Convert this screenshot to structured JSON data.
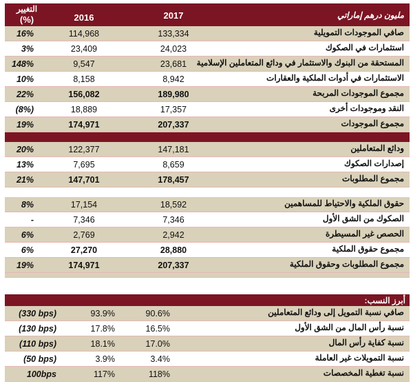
{
  "header": {
    "unit_label": "مليون درهم إماراتي",
    "col_2017": "2017",
    "col_2016": "2016",
    "col_change_line1": "التغيير",
    "col_change_line2": "(%)"
  },
  "colors": {
    "header_bg": "#7b1523",
    "band_bg": "#d9d1b9",
    "row_border": "#e7b7b5"
  },
  "assets": [
    {
      "label": "صافي الموجودات التمويلية",
      "y2017": "133,334",
      "y2016": "114,968",
      "change": "16%",
      "bold": false
    },
    {
      "label": "استثمارات في الصكوك",
      "y2017": "24,023",
      "y2016": "23,409",
      "change": "3%",
      "bold": false
    },
    {
      "label": "المستحقة من البنوك والاستثمار في ودائع المتعاملين الإسلامية",
      "y2017": "23,681",
      "y2016": "9,547",
      "change": "148%",
      "bold": false
    },
    {
      "label": "الاستثمارات في أدوات الملكية والعقارات",
      "y2017": "8,942",
      "y2016": "8,158",
      "change": "10%",
      "bold": false
    },
    {
      "label": "مجموع الموجودات المربحة",
      "y2017": "189,980",
      "y2016": "156,082",
      "change": "22%",
      "bold": true
    },
    {
      "label": "النقد وموجودات أخرى",
      "y2017": "17,357",
      "y2016": "18,889",
      "change": "(8%)",
      "bold": false
    },
    {
      "label": "مجموع الموجودات",
      "y2017": "207,337",
      "y2016": "174,971",
      "change": "19%",
      "bold": true
    }
  ],
  "liabilities": [
    {
      "label": "ودائع المتعاملين",
      "y2017": "147,181",
      "y2016": "122,377",
      "change": "20%",
      "bold": false
    },
    {
      "label": "إصدارات الصكوك",
      "y2017": "8,659",
      "y2016": "7,695",
      "change": "13%",
      "bold": false
    },
    {
      "label": "مجموع المطلوبات",
      "y2017": "178,457",
      "y2016": "147,701",
      "change": "21%",
      "bold": true
    }
  ],
  "equity": [
    {
      "label": "حقوق الملكية والاحتياط للمساهمين",
      "y2017": "18,592",
      "y2016": "17,154",
      "change": "8%",
      "bold": false
    },
    {
      "label": "الصكوك من الشق الأول",
      "y2017": "7,346",
      "y2016": "7,346",
      "change": "-",
      "bold": false
    },
    {
      "label": "الحصص غير المسيطرة",
      "y2017": "2,942",
      "y2016": "2,769",
      "change": "6%",
      "bold": false
    },
    {
      "label": "مجموع حقوق الملكية",
      "y2017": "28,880",
      "y2016": "27,270",
      "change": "6%",
      "bold": true
    },
    {
      "label": "مجموع المطلوبات وحقوق الملكية",
      "y2017": "207,337",
      "y2016": "174,971",
      "change": "19%",
      "bold": true
    }
  ],
  "ratios_title": "أبرز النسب:",
  "ratios": [
    {
      "label": "صافي نسبة التمويل إلى ودائع المتعاملين",
      "y2017": "90.6%",
      "y2016": "93.9%",
      "change": "(330 bps)"
    },
    {
      "label": "نسبة رأس المال من الشق الأول",
      "y2017": "16.5%",
      "y2016": "17.8%",
      "change": "(130 bps)"
    },
    {
      "label": "نسبة كفاية رأس المال",
      "y2017": "17.0%",
      "y2016": "18.1%",
      "change": "(110 bps)"
    },
    {
      "label": "نسبة  التمويلات غير العاملة",
      "y2017": "3.4%",
      "y2016": "3.9%",
      "change": "(50 bps)"
    },
    {
      "label": "نسبة تغطية المخصصات",
      "y2017": "118%",
      "y2016": "117%",
      "change": "100bps"
    }
  ]
}
